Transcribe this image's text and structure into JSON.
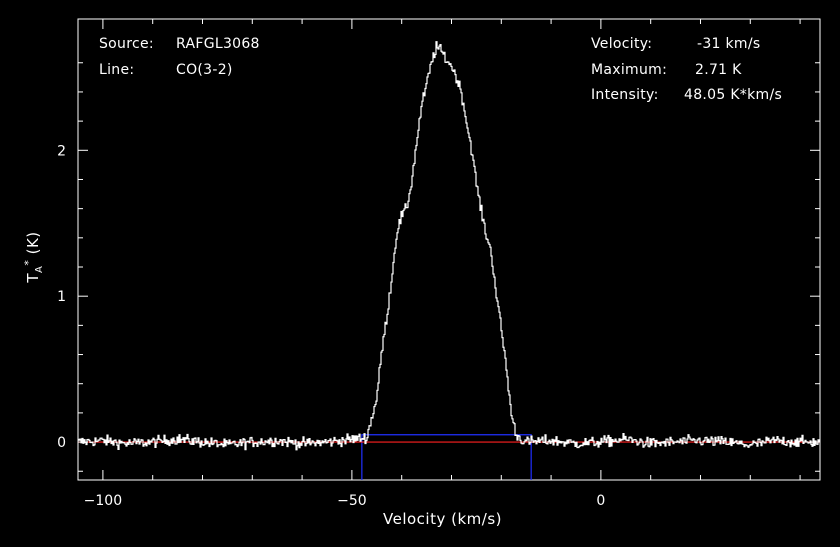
{
  "info": {
    "source_label": "Source:",
    "source_value": "RAFGL3068",
    "line_label": "Line:",
    "line_value": "CO(3-2)",
    "velocity_label": "Velocity:",
    "velocity_value": "-31 km/s",
    "maximum_label": "Maximum:",
    "maximum_value": "2.71 K",
    "intensity_label": "Intensity:",
    "intensity_value": "48.05 K*km/s"
  },
  "chart_data": {
    "type": "line",
    "xlabel": "Velocity (km/s)",
    "ylabel": "T_A^* (K)",
    "xlim": [
      -105,
      44
    ],
    "ylim": [
      -0.26,
      2.9
    ],
    "x_ticks": [
      -100,
      -50,
      0
    ],
    "y_ticks": [
      0,
      1,
      2
    ],
    "colors": {
      "spectrum": "#ffffff",
      "baseline": "#ff2020",
      "window": "#2030ff",
      "axes": "#ffffff"
    },
    "baseline_y": 0,
    "window": {
      "x_start": -48,
      "x_end": -14,
      "top_y": 0.05
    },
    "series": [
      {
        "line_type": "histogram",
        "x": [
          -105,
          -100,
          -95,
          -90,
          -85,
          -80,
          -75,
          -70,
          -65,
          -60,
          -55,
          -50,
          -47,
          -45,
          -44,
          -43,
          -42,
          -41,
          -40,
          -39,
          -38,
          -37,
          -36,
          -35,
          -34,
          -33,
          -32,
          -31,
          -30,
          -29,
          -28,
          -27,
          -26,
          -25,
          -24,
          -23,
          -22,
          -21,
          -20,
          -19,
          -18,
          -17,
          -16,
          -15,
          -10,
          -5,
          0,
          5,
          10,
          15,
          20,
          25,
          30,
          35,
          40,
          44
        ],
        "y": [
          0,
          0.01,
          -0.01,
          0,
          0.02,
          0,
          -0.02,
          0,
          0.01,
          -0.01,
          0,
          0.02,
          0.03,
          0.3,
          0.62,
          0.85,
          1.12,
          1.43,
          1.55,
          1.6,
          1.78,
          2.05,
          2.3,
          2.45,
          2.6,
          2.71,
          2.68,
          2.62,
          2.58,
          2.5,
          2.4,
          2.2,
          2.02,
          1.78,
          1.58,
          1.42,
          1.3,
          1.02,
          0.78,
          0.52,
          0.2,
          0.05,
          0.02,
          0,
          0.01,
          -0.01,
          0,
          0.02,
          -0.01,
          0,
          0.01,
          0,
          -0.02,
          0.01,
          0,
          0
        ]
      }
    ]
  }
}
